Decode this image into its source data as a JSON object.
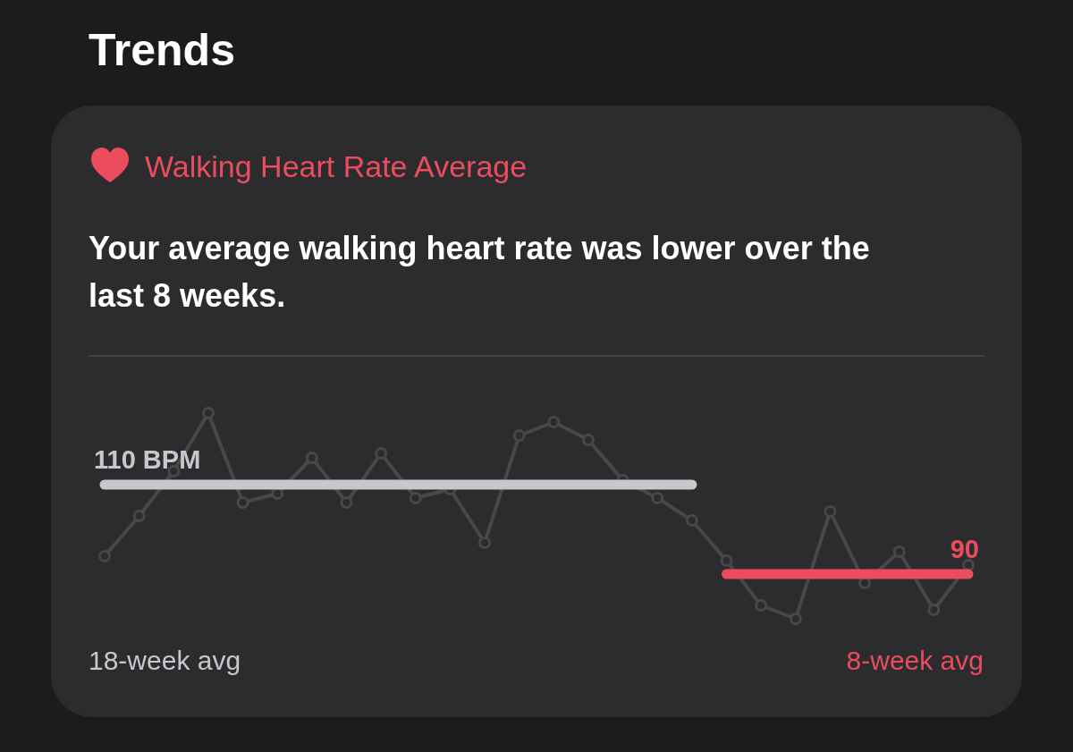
{
  "chart_data": {
    "type": "line",
    "title": "Trends",
    "subtitle": "Walking Heart Rate Average",
    "annotations": [
      "Your average walking heart rate was lower over the last 8 weeks."
    ],
    "categories": [
      null,
      null,
      null,
      null,
      null,
      null,
      null,
      null,
      null,
      null,
      null,
      null,
      null,
      null,
      null,
      null,
      null,
      null,
      null,
      null,
      null,
      null,
      null,
      null,
      null,
      null
    ],
    "tick_labels": false,
    "marker": "circle",
    "series": [
      {
        "color": "#48484a",
        "values": [
          94,
          103,
          113,
          126,
          106,
          108,
          116,
          106,
          117,
          107,
          109,
          97,
          121,
          124,
          120,
          111,
          107,
          102,
          93,
          83,
          80,
          104,
          88,
          95,
          82,
          92
        ]
      },
      {
        "name": "18-week avg",
        "color": "#c7c7cc",
        "marker": "none",
        "values": [
          110,
          110,
          110,
          110,
          110,
          110,
          110,
          110,
          110,
          110,
          110,
          110,
          110,
          110,
          110,
          110,
          110,
          110,
          null,
          null,
          null,
          null,
          null,
          null,
          null,
          null
        ],
        "value_labels": [
          "110 BPM",
          null,
          null,
          null,
          null,
          null,
          null,
          null,
          null,
          null,
          null,
          null,
          null,
          null,
          null,
          null,
          null,
          null,
          null,
          null,
          null,
          null,
          null,
          null,
          null,
          null
        ]
      },
      {
        "name": "8-week avg",
        "color": "#eb4d5f",
        "marker": "none",
        "values": [
          null,
          null,
          null,
          null,
          null,
          null,
          null,
          null,
          null,
          null,
          null,
          null,
          null,
          null,
          null,
          null,
          null,
          null,
          90,
          90,
          90,
          90,
          90,
          90,
          90,
          90
        ],
        "value_labels": [
          null,
          null,
          null,
          null,
          null,
          null,
          null,
          null,
          null,
          null,
          null,
          null,
          null,
          null,
          null,
          null,
          null,
          null,
          null,
          null,
          null,
          null,
          null,
          null,
          null,
          "90"
        ]
      }
    ]
  }
}
